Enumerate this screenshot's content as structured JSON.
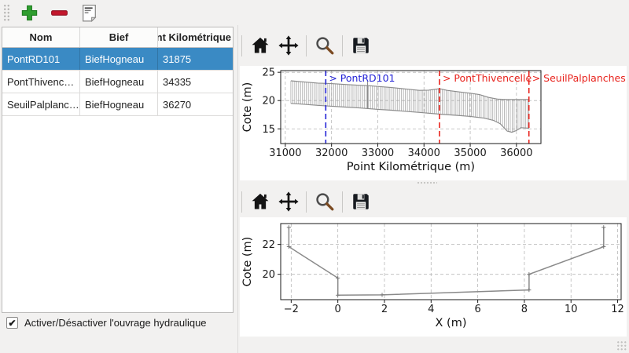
{
  "left_toolbar": {
    "buttons": [
      {
        "name": "add-structure",
        "icon": "plus-icon"
      },
      {
        "name": "remove-structure",
        "icon": "minus-icon"
      },
      {
        "name": "edit-structure",
        "icon": "document-icon"
      }
    ]
  },
  "table": {
    "columns": [
      "Nom",
      "Bief",
      "Point Kilométrique"
    ],
    "rows": [
      [
        "PontRD101",
        "BiefHogneau",
        "31875"
      ],
      [
        "PontThivenc…",
        "BiefHogneau",
        "34335"
      ],
      [
        "SeuilPalplanc…",
        "BiefHogneau",
        "36270"
      ]
    ],
    "selected_row": 0
  },
  "checkbox": {
    "label": "Activer/Désactiver l'ouvrage hydraulique",
    "checked": true,
    "checkmark": "✔"
  },
  "chart_toolbar": {
    "icons": [
      "home-icon",
      "pan-icon",
      "zoom-icon",
      "save-icon"
    ]
  },
  "colors": {
    "selection_blue": "#3a8ac4",
    "annotation_blue": "#2323d6",
    "annotation_red": "#e8231d",
    "profile_gray": "#8c8c8c",
    "hatch_gray": "#a2a2a2",
    "grid_gray": "#b8b8b8",
    "axis_black": "#1a1a1a"
  },
  "chart_data": [
    {
      "type": "line",
      "title": "",
      "xlabel": "Point Kilométrique (m)",
      "ylabel": "Cote (m)",
      "xlim": [
        30900,
        36530
      ],
      "ylim": [
        12.4,
        25.3
      ],
      "xticks": [
        31000,
        32000,
        33000,
        34000,
        35000,
        36000
      ],
      "yticks": [
        15,
        20,
        25
      ],
      "grid": true,
      "legend_position": "none",
      "series": [
        {
          "name": "profile-top-envelope",
          "color": "#8c8c8c",
          "points": [
            [
              31120,
              23.5
            ],
            [
              31400,
              23.3
            ],
            [
              31700,
              23.1
            ],
            [
              32000,
              23.0
            ],
            [
              32300,
              22.85
            ],
            [
              32600,
              22.7
            ],
            [
              32780,
              22.65
            ],
            [
              33000,
              22.5
            ],
            [
              33300,
              22.3
            ],
            [
              33600,
              22.05
            ],
            [
              33900,
              21.8
            ],
            [
              34100,
              21.85
            ],
            [
              34335,
              22.1
            ],
            [
              34500,
              21.8
            ],
            [
              34800,
              21.5
            ],
            [
              35000,
              21.3
            ],
            [
              35200,
              21.05
            ],
            [
              35400,
              20.55
            ],
            [
              35600,
              20.25
            ],
            [
              35800,
              20.2
            ],
            [
              36000,
              20.2
            ],
            [
              36270,
              20.2
            ]
          ]
        },
        {
          "name": "profile-bottom-envelope",
          "color": "#8c8c8c",
          "points": [
            [
              31120,
              19.5
            ],
            [
              31400,
              19.35
            ],
            [
              31700,
              19.15
            ],
            [
              32000,
              19.0
            ],
            [
              32300,
              18.85
            ],
            [
              32600,
              18.7
            ],
            [
              33000,
              18.45
            ],
            [
              33300,
              18.3
            ],
            [
              33600,
              18.1
            ],
            [
              33900,
              17.9
            ],
            [
              34335,
              17.6
            ],
            [
              34700,
              17.4
            ],
            [
              35000,
              17.2
            ],
            [
              35300,
              16.9
            ],
            [
              35500,
              16.5
            ],
            [
              35650,
              15.9
            ],
            [
              35800,
              14.6
            ],
            [
              35900,
              14.4
            ],
            [
              36000,
              14.7
            ],
            [
              36100,
              15.2
            ],
            [
              36200,
              15.15
            ],
            [
              36270,
              15.1
            ]
          ]
        }
      ],
      "hatch_between": [
        0,
        1
      ],
      "hatch_step": 42,
      "spikes": [
        {
          "x": 32780,
          "y_top": 23.35
        }
      ],
      "annotations": [
        {
          "label": "> PontRD101",
          "x": 31875,
          "color_key": "annotation_blue"
        },
        {
          "label": "> PontThivencelle",
          "x": 34335,
          "color_key": "annotation_red"
        },
        {
          "label": "> SeuilPalplanches",
          "x": 36270,
          "color_key": "annotation_red"
        }
      ]
    },
    {
      "type": "line",
      "title": "",
      "xlabel": "X (m)",
      "ylabel": "Cote (m)",
      "xlim": [
        -2.45,
        12.15
      ],
      "ylim": [
        18.3,
        23.4
      ],
      "xticks": [
        -2,
        0,
        2,
        4,
        6,
        8,
        10,
        12
      ],
      "yticks": [
        20,
        22
      ],
      "grid": true,
      "legend_position": "none",
      "series": [
        {
          "name": "cross-section-profile",
          "color": "#8a8a8a",
          "markers": true,
          "points": [
            [
              -2.1,
              23.15
            ],
            [
              -2.1,
              21.85
            ],
            [
              0,
              19.75
            ],
            [
              0,
              18.6
            ],
            [
              1.9,
              18.62
            ],
            [
              8.2,
              18.95
            ],
            [
              8.2,
              20.0
            ],
            [
              11.4,
              21.85
            ],
            [
              11.4,
              23.15
            ]
          ]
        }
      ]
    }
  ]
}
